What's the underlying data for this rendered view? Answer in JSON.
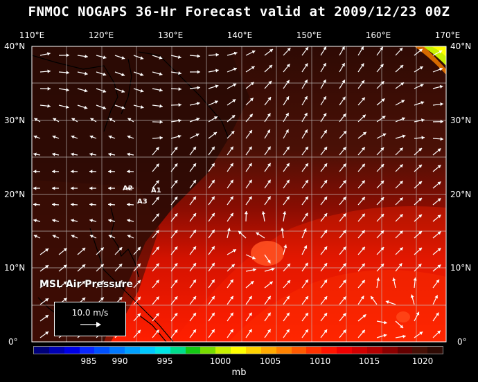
{
  "title": "FNMOC NOGAPS 36-Hr Forecast valid at 2009/12/23 00Z",
  "lon_labels": [
    "110°E",
    "120°E",
    "130°E",
    "140°E",
    "150°E",
    "160°E",
    "170°E"
  ],
  "lat_labels": [
    "40°N",
    "30°N",
    "20°N",
    "10°N",
    "0°"
  ],
  "field_label": "MSL Air Pressure",
  "reference_vector": {
    "label": "10.0 m/s"
  },
  "stations": [
    "A1",
    "A2",
    "A3"
  ],
  "colorbar": {
    "tick_labels": [
      "985",
      "990",
      "995",
      "1000",
      "1005",
      "1010",
      "1015",
      "1020"
    ],
    "unit": "mb",
    "colors": [
      "#00007a",
      "#0000b4",
      "#0000e6",
      "#0a28ff",
      "#0050ff",
      "#0078ff",
      "#00a0ff",
      "#00c8ff",
      "#00e6e6",
      "#00dc8c",
      "#14c814",
      "#78dc00",
      "#c8f000",
      "#ffff00",
      "#ffd200",
      "#ffaa00",
      "#ff8200",
      "#ff5a00",
      "#ff3200",
      "#ff1400",
      "#f00000",
      "#d20000",
      "#b40000",
      "#8c0000",
      "#640000",
      "#461006",
      "#2e0a04"
    ]
  }
}
